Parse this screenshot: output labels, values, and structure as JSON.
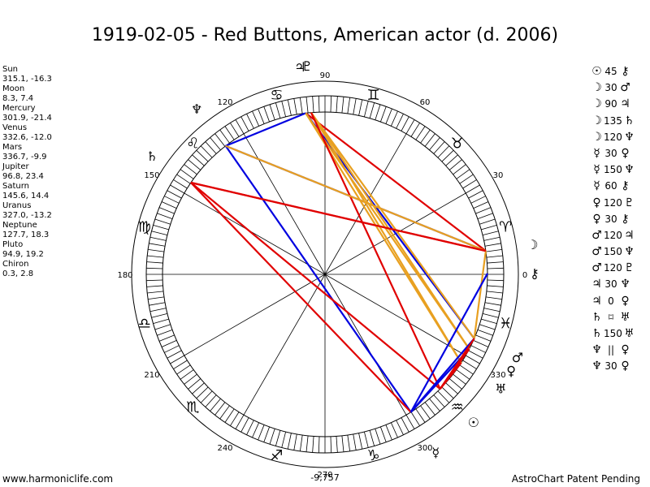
{
  "title": "1919-02-05 - Red Buttons, American actor (d. 2006)",
  "planets": [
    {
      "name": "Sun",
      "coords": "315.1, -16.3",
      "lon": 315.1,
      "lat": -16.3,
      "icon": "sun-icon",
      "glyph": "☉"
    },
    {
      "name": "Moon",
      "coords": "8.3, 7.4",
      "lon": 8.3,
      "lat": 7.4,
      "icon": "moon-icon",
      "glyph": "☽"
    },
    {
      "name": "Mercury",
      "coords": "301.9, -21.4",
      "lon": 301.9,
      "lat": -21.4,
      "icon": "mercury-icon",
      "glyph": "☿"
    },
    {
      "name": "Venus",
      "coords": "332.6, -12.0",
      "lon": 332.6,
      "lat": -12.0,
      "icon": "venus-icon",
      "glyph": "♀"
    },
    {
      "name": "Mars",
      "coords": "336.7, -9.9",
      "lon": 336.7,
      "lat": -9.9,
      "icon": "mars-icon",
      "glyph": "♂"
    },
    {
      "name": "Jupiter",
      "coords": "96.8, 23.4",
      "lon": 96.8,
      "lat": 23.4,
      "icon": "jupiter-icon",
      "glyph": "♃"
    },
    {
      "name": "Saturn",
      "coords": "145.6, 14.4",
      "lon": 145.6,
      "lat": 14.4,
      "icon": "saturn-icon",
      "glyph": "♄"
    },
    {
      "name": "Uranus",
      "coords": "327.0, -13.2",
      "lon": 327.0,
      "lat": -13.2,
      "icon": "uranus-icon",
      "glyph": "♅"
    },
    {
      "name": "Neptune",
      "coords": "127.7, 18.3",
      "lon": 127.7,
      "lat": 18.3,
      "icon": "neptune-icon",
      "glyph": "♆"
    },
    {
      "name": "Pluto",
      "coords": "94.9, 19.2",
      "lon": 94.9,
      "lat": 19.2,
      "icon": "pluto-icon",
      "glyph": "♇"
    },
    {
      "name": "Chiron",
      "coords": "0.3, 2.8",
      "lon": 0.3,
      "lat": 2.8,
      "icon": "chiron-icon",
      "glyph": "⚷"
    }
  ],
  "aspects": [
    {
      "p1": "Sun",
      "angle": "45",
      "p2": "Chiron",
      "g1": "☉",
      "g2": "⚷",
      "color": "#e8a020"
    },
    {
      "p1": "Moon",
      "angle": "30",
      "p2": "Mars",
      "g1": "☽",
      "g2": "♂",
      "color": "#e8a020"
    },
    {
      "p1": "Moon",
      "angle": "90",
      "p2": "Jupiter",
      "g1": "☽",
      "g2": "♃",
      "color": "#e00000"
    },
    {
      "p1": "Moon",
      "angle": "135",
      "p2": "Saturn",
      "g1": "☽",
      "g2": "♄",
      "color": "#e00000"
    },
    {
      "p1": "Moon",
      "angle": "120",
      "p2": "Neptune",
      "g1": "☽",
      "g2": "♆",
      "color": "#0000e0"
    },
    {
      "p1": "Mercury",
      "angle": "30",
      "p2": "Venus",
      "g1": "☿",
      "g2": "♀",
      "color": "#e8a020"
    },
    {
      "p1": "Mercury",
      "angle": "150",
      "p2": "Neptune",
      "g1": "☿",
      "g2": "♆",
      "color": "#e8a020"
    },
    {
      "p1": "Mercury",
      "angle": "60",
      "p2": "Chiron",
      "g1": "☿",
      "g2": "⚷",
      "color": "#0000e0"
    },
    {
      "p1": "Venus",
      "angle": "120",
      "p2": "Pluto",
      "g1": "♀",
      "g2": "♇",
      "color": "#0000e0"
    },
    {
      "p1": "Venus",
      "angle": "30",
      "p2": "Chiron",
      "g1": "♀",
      "g2": "⚷",
      "color": "#e8a020"
    },
    {
      "p1": "Mars",
      "angle": "120",
      "p2": "Jupiter",
      "g1": "♂",
      "g2": "♃",
      "color": "#0000e0"
    },
    {
      "p1": "Mars",
      "angle": "150",
      "p2": "Neptune",
      "g1": "♂",
      "g2": "♆",
      "color": "#e8a020"
    },
    {
      "p1": "Mars",
      "angle": "120",
      "p2": "Pluto",
      "g1": "♂",
      "g2": "♇",
      "color": "#0000e0"
    },
    {
      "p1": "Jupiter",
      "angle": "30",
      "p2": "Neptune",
      "g1": "♃",
      "g2": "♆",
      "color": "#e8a020"
    },
    {
      "p1": "Jupiter",
      "angle": "0",
      "p2": "Venus",
      "g1": "♃",
      "g2": "♀",
      "color": "#e00000"
    },
    {
      "p1": "Saturn",
      "angle": "⌑",
      "p2": "Uranus",
      "g1": "♄",
      "g2": "♅",
      "color": "#e00000"
    },
    {
      "p1": "Saturn",
      "angle": "150",
      "p2": "Uranus",
      "g1": "♄",
      "g2": "♅",
      "color": "#e8a020"
    },
    {
      "p1": "Neptune",
      "angle": "||",
      "p2": "Venus",
      "g1": "♆",
      "g2": "♀",
      "color": "#e00000"
    },
    {
      "p1": "Neptune",
      "angle": "30",
      "p2": "Venus",
      "g1": "♆",
      "g2": "♀",
      "color": "#e8a020"
    }
  ],
  "chart_data": {
    "type": "radial-wheel",
    "degree_labels": [
      "90",
      "60",
      "30",
      "0",
      "330",
      "300",
      "270",
      "240",
      "210",
      "180",
      "150",
      "120"
    ],
    "center_value": "-9,757",
    "signs": [
      {
        "name": "Aries",
        "glyph": "♈"
      },
      {
        "name": "Taurus",
        "glyph": "♉"
      },
      {
        "name": "Gemini",
        "glyph": "♊"
      },
      {
        "name": "Cancer",
        "glyph": "♋"
      },
      {
        "name": "Leo",
        "glyph": "♌"
      },
      {
        "name": "Virgo",
        "glyph": "♍"
      },
      {
        "name": "Libra",
        "glyph": "♎"
      },
      {
        "name": "Scorpio",
        "glyph": "♏"
      },
      {
        "name": "Sagittarius",
        "glyph": "♐"
      },
      {
        "name": "Capricorn",
        "glyph": "♑"
      },
      {
        "name": "Aquarius",
        "glyph": "♒"
      },
      {
        "name": "Pisces",
        "glyph": "♓"
      }
    ],
    "aspect_lines": [
      {
        "from": "Moon",
        "to": "Neptune",
        "color": "#0000e0"
      },
      {
        "from": "Moon",
        "to": "Jupiter",
        "color": "#e00000"
      },
      {
        "from": "Moon",
        "to": "Saturn",
        "color": "#e00000"
      },
      {
        "from": "Moon",
        "to": "Mars",
        "color": "#e8a020"
      },
      {
        "from": "Jupiter",
        "to": "Neptune",
        "color": "#0000e0"
      },
      {
        "from": "Jupiter",
        "to": "Mars",
        "color": "#0000e0"
      },
      {
        "from": "Jupiter",
        "to": "Venus",
        "color": "#e8a020"
      },
      {
        "from": "Jupiter",
        "to": "Uranus",
        "color": "#e8a020"
      },
      {
        "from": "Pluto",
        "to": "Mars",
        "color": "#e8a020"
      },
      {
        "from": "Pluto",
        "to": "Uranus",
        "color": "#e8a020"
      },
      {
        "from": "Pluto",
        "to": "Venus",
        "color": "#e8a020"
      },
      {
        "from": "Pluto",
        "to": "Sun",
        "color": "#e00000"
      },
      {
        "from": "Neptune",
        "to": "Mercury",
        "color": "#0000e0"
      },
      {
        "from": "Neptune",
        "to": "Moon",
        "color": "#e8a020"
      },
      {
        "from": "Saturn",
        "to": "Moon",
        "color": "#e00000"
      },
      {
        "from": "Saturn",
        "to": "Mercury",
        "color": "#e00000"
      },
      {
        "from": "Saturn",
        "to": "Sun",
        "color": "#e00000"
      },
      {
        "from": "Mercury",
        "to": "Chiron",
        "color": "#0000e0"
      },
      {
        "from": "Mercury",
        "to": "Mars",
        "color": "#0000e0"
      },
      {
        "from": "Mercury",
        "to": "Venus",
        "color": "#0000e0"
      },
      {
        "from": "Sun",
        "to": "Uranus",
        "color": "#e00000"
      },
      {
        "from": "Sun",
        "to": "Venus",
        "color": "#e00000"
      },
      {
        "from": "Sun",
        "to": "Mars",
        "color": "#e00000"
      }
    ]
  },
  "footer": {
    "website": "www.harmoniclife.com",
    "notice": "AstroChart Patent Pending"
  }
}
